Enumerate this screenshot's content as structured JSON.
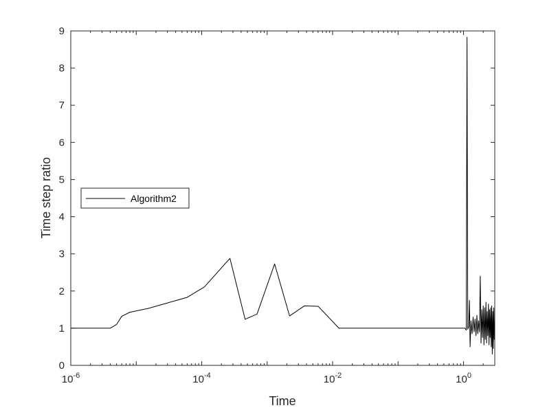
{
  "chart_data": {
    "type": "line",
    "title": "",
    "xlabel": "Time",
    "ylabel": "Time step ratio",
    "xscale": "log",
    "xlim": [
      1e-06,
      3
    ],
    "ylim": [
      0,
      9
    ],
    "grid": false,
    "legend_position": "left",
    "x_ticks": [
      {
        "value": 1e-06,
        "base": "10",
        "exp": "-6"
      },
      {
        "value": 0.0001,
        "base": "10",
        "exp": "-4"
      },
      {
        "value": 0.01,
        "base": "10",
        "exp": "-2"
      },
      {
        "value": 1,
        "base": "10",
        "exp": "0"
      }
    ],
    "y_ticks": [
      "0",
      "1",
      "2",
      "3",
      "4",
      "5",
      "6",
      "7",
      "8",
      "9"
    ],
    "series": [
      {
        "name": "Algorithm2",
        "color": "#000000",
        "points": [
          [
            1e-06,
            1.0
          ],
          [
            4e-06,
            1.0
          ],
          [
            5e-06,
            1.1
          ],
          [
            6e-06,
            1.32
          ],
          [
            8e-06,
            1.43
          ],
          [
            1.5e-05,
            1.53
          ],
          [
            3e-05,
            1.68
          ],
          [
            6e-05,
            1.83
          ],
          [
            0.00011,
            2.11
          ],
          [
            0.00027,
            2.88
          ],
          [
            0.00046,
            1.24
          ],
          [
            0.0007,
            1.38
          ],
          [
            0.0013,
            2.73
          ],
          [
            0.0022,
            1.33
          ],
          [
            0.0037,
            1.6
          ],
          [
            0.006,
            1.59
          ],
          [
            0.0125,
            1.0
          ],
          [
            0.1,
            1.0
          ],
          [
            0.6,
            1.0
          ],
          [
            1.05,
            1.0
          ],
          [
            1.1,
            0.95
          ],
          [
            1.13,
            8.83
          ],
          [
            1.16,
            0.97
          ],
          [
            1.2,
            1.05
          ],
          [
            1.23,
            1.75
          ],
          [
            1.26,
            0.5
          ],
          [
            1.3,
            1.2
          ],
          [
            1.35,
            0.85
          ],
          [
            1.4,
            1.3
          ],
          [
            1.45,
            0.9
          ],
          [
            1.5,
            1.25
          ],
          [
            1.55,
            0.8
          ],
          [
            1.6,
            1.35
          ],
          [
            1.65,
            0.85
          ],
          [
            1.7,
            1.2
          ],
          [
            1.75,
            0.9
          ],
          [
            1.8,
            2.4
          ],
          [
            1.85,
            0.6
          ],
          [
            1.9,
            1.5
          ],
          [
            1.95,
            0.75
          ],
          [
            2.0,
            1.6
          ],
          [
            2.05,
            0.55
          ],
          [
            2.1,
            1.55
          ],
          [
            2.15,
            0.7
          ],
          [
            2.2,
            1.7
          ],
          [
            2.25,
            0.6
          ],
          [
            2.3,
            1.45
          ],
          [
            2.35,
            0.8
          ],
          [
            2.4,
            1.65
          ],
          [
            2.45,
            0.55
          ],
          [
            2.5,
            1.5
          ],
          [
            2.55,
            0.75
          ],
          [
            2.6,
            1.55
          ],
          [
            2.65,
            0.5
          ],
          [
            2.7,
            1.6
          ],
          [
            2.75,
            0.3
          ],
          [
            2.8,
            1.45
          ],
          [
            2.85,
            0.45
          ],
          [
            2.9,
            1.55
          ],
          [
            2.95,
            0.7
          ],
          [
            3.0,
            1.2
          ]
        ]
      }
    ]
  }
}
